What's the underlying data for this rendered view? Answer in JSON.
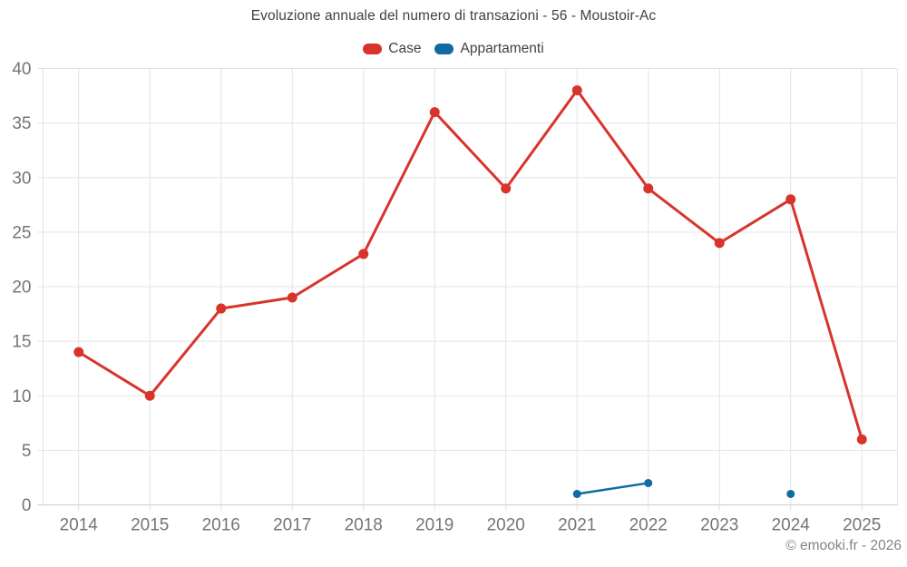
{
  "header": {
    "title": "Evoluzione annuale del numero di transazioni - 56 - Moustoir-Ac"
  },
  "footer": {
    "copyright": "© emooki.fr - 2026"
  },
  "styles": {
    "grid_color": "#e4e4e4",
    "axis_color": "#d2d2d2",
    "tick_text_color": "#757575"
  },
  "chart_data": {
    "type": "line",
    "title": "Evoluzione annuale del numero di transazioni - 56 - Moustoir-Ac",
    "xlabel": "",
    "ylabel": "",
    "categories": [
      "2014",
      "2015",
      "2016",
      "2017",
      "2018",
      "2019",
      "2020",
      "2021",
      "2022",
      "2023",
      "2024",
      "2025"
    ],
    "series": [
      {
        "name": "Case",
        "color": "#d8342c",
        "values": [
          14,
          10,
          18,
          19,
          23,
          36,
          29,
          38,
          29,
          24,
          28,
          6
        ]
      },
      {
        "name": "Appartamenti",
        "color": "#0f6ba3",
        "values": [
          null,
          null,
          null,
          null,
          null,
          null,
          null,
          1,
          2,
          null,
          1,
          null
        ]
      }
    ],
    "ylim": [
      0,
      40
    ],
    "ytick_step": 5,
    "yticks": [
      0,
      5,
      10,
      15,
      20,
      25,
      30,
      35,
      40
    ],
    "grid": true,
    "legend_position": "top",
    "annotations": []
  }
}
